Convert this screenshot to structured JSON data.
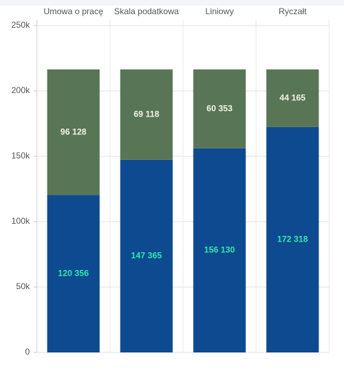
{
  "chart_data": {
    "type": "stacked_bar",
    "categories": [
      "Umowa o pracę",
      "Skala podatkowa",
      "Liniowy",
      "Ryczałt"
    ],
    "series": [
      {
        "color": "#0d4a8f",
        "label_color": "#2ee8b0",
        "values": [
          120356,
          147365,
          156130,
          172318
        ],
        "value_labels": [
          "120 356",
          "147 365",
          "156 130",
          "172 318"
        ]
      },
      {
        "color": "#587556",
        "label_color": "#f2f2e6",
        "values": [
          96128,
          69118,
          60353,
          44165
        ],
        "value_labels": [
          "96 128",
          "69 118",
          "60 353",
          "44 165"
        ]
      }
    ],
    "ylim": [
      0,
      250000
    ],
    "yticks": [
      0,
      {
        "value": 50000,
        "label": "50k"
      },
      {
        "value": 100000,
        "label": "100k"
      },
      {
        "value": 150000,
        "label": "150k"
      },
      {
        "value": 200000,
        "label": "200k"
      },
      {
        "value": 250000,
        "label": "250k"
      }
    ],
    "grid": true
  }
}
